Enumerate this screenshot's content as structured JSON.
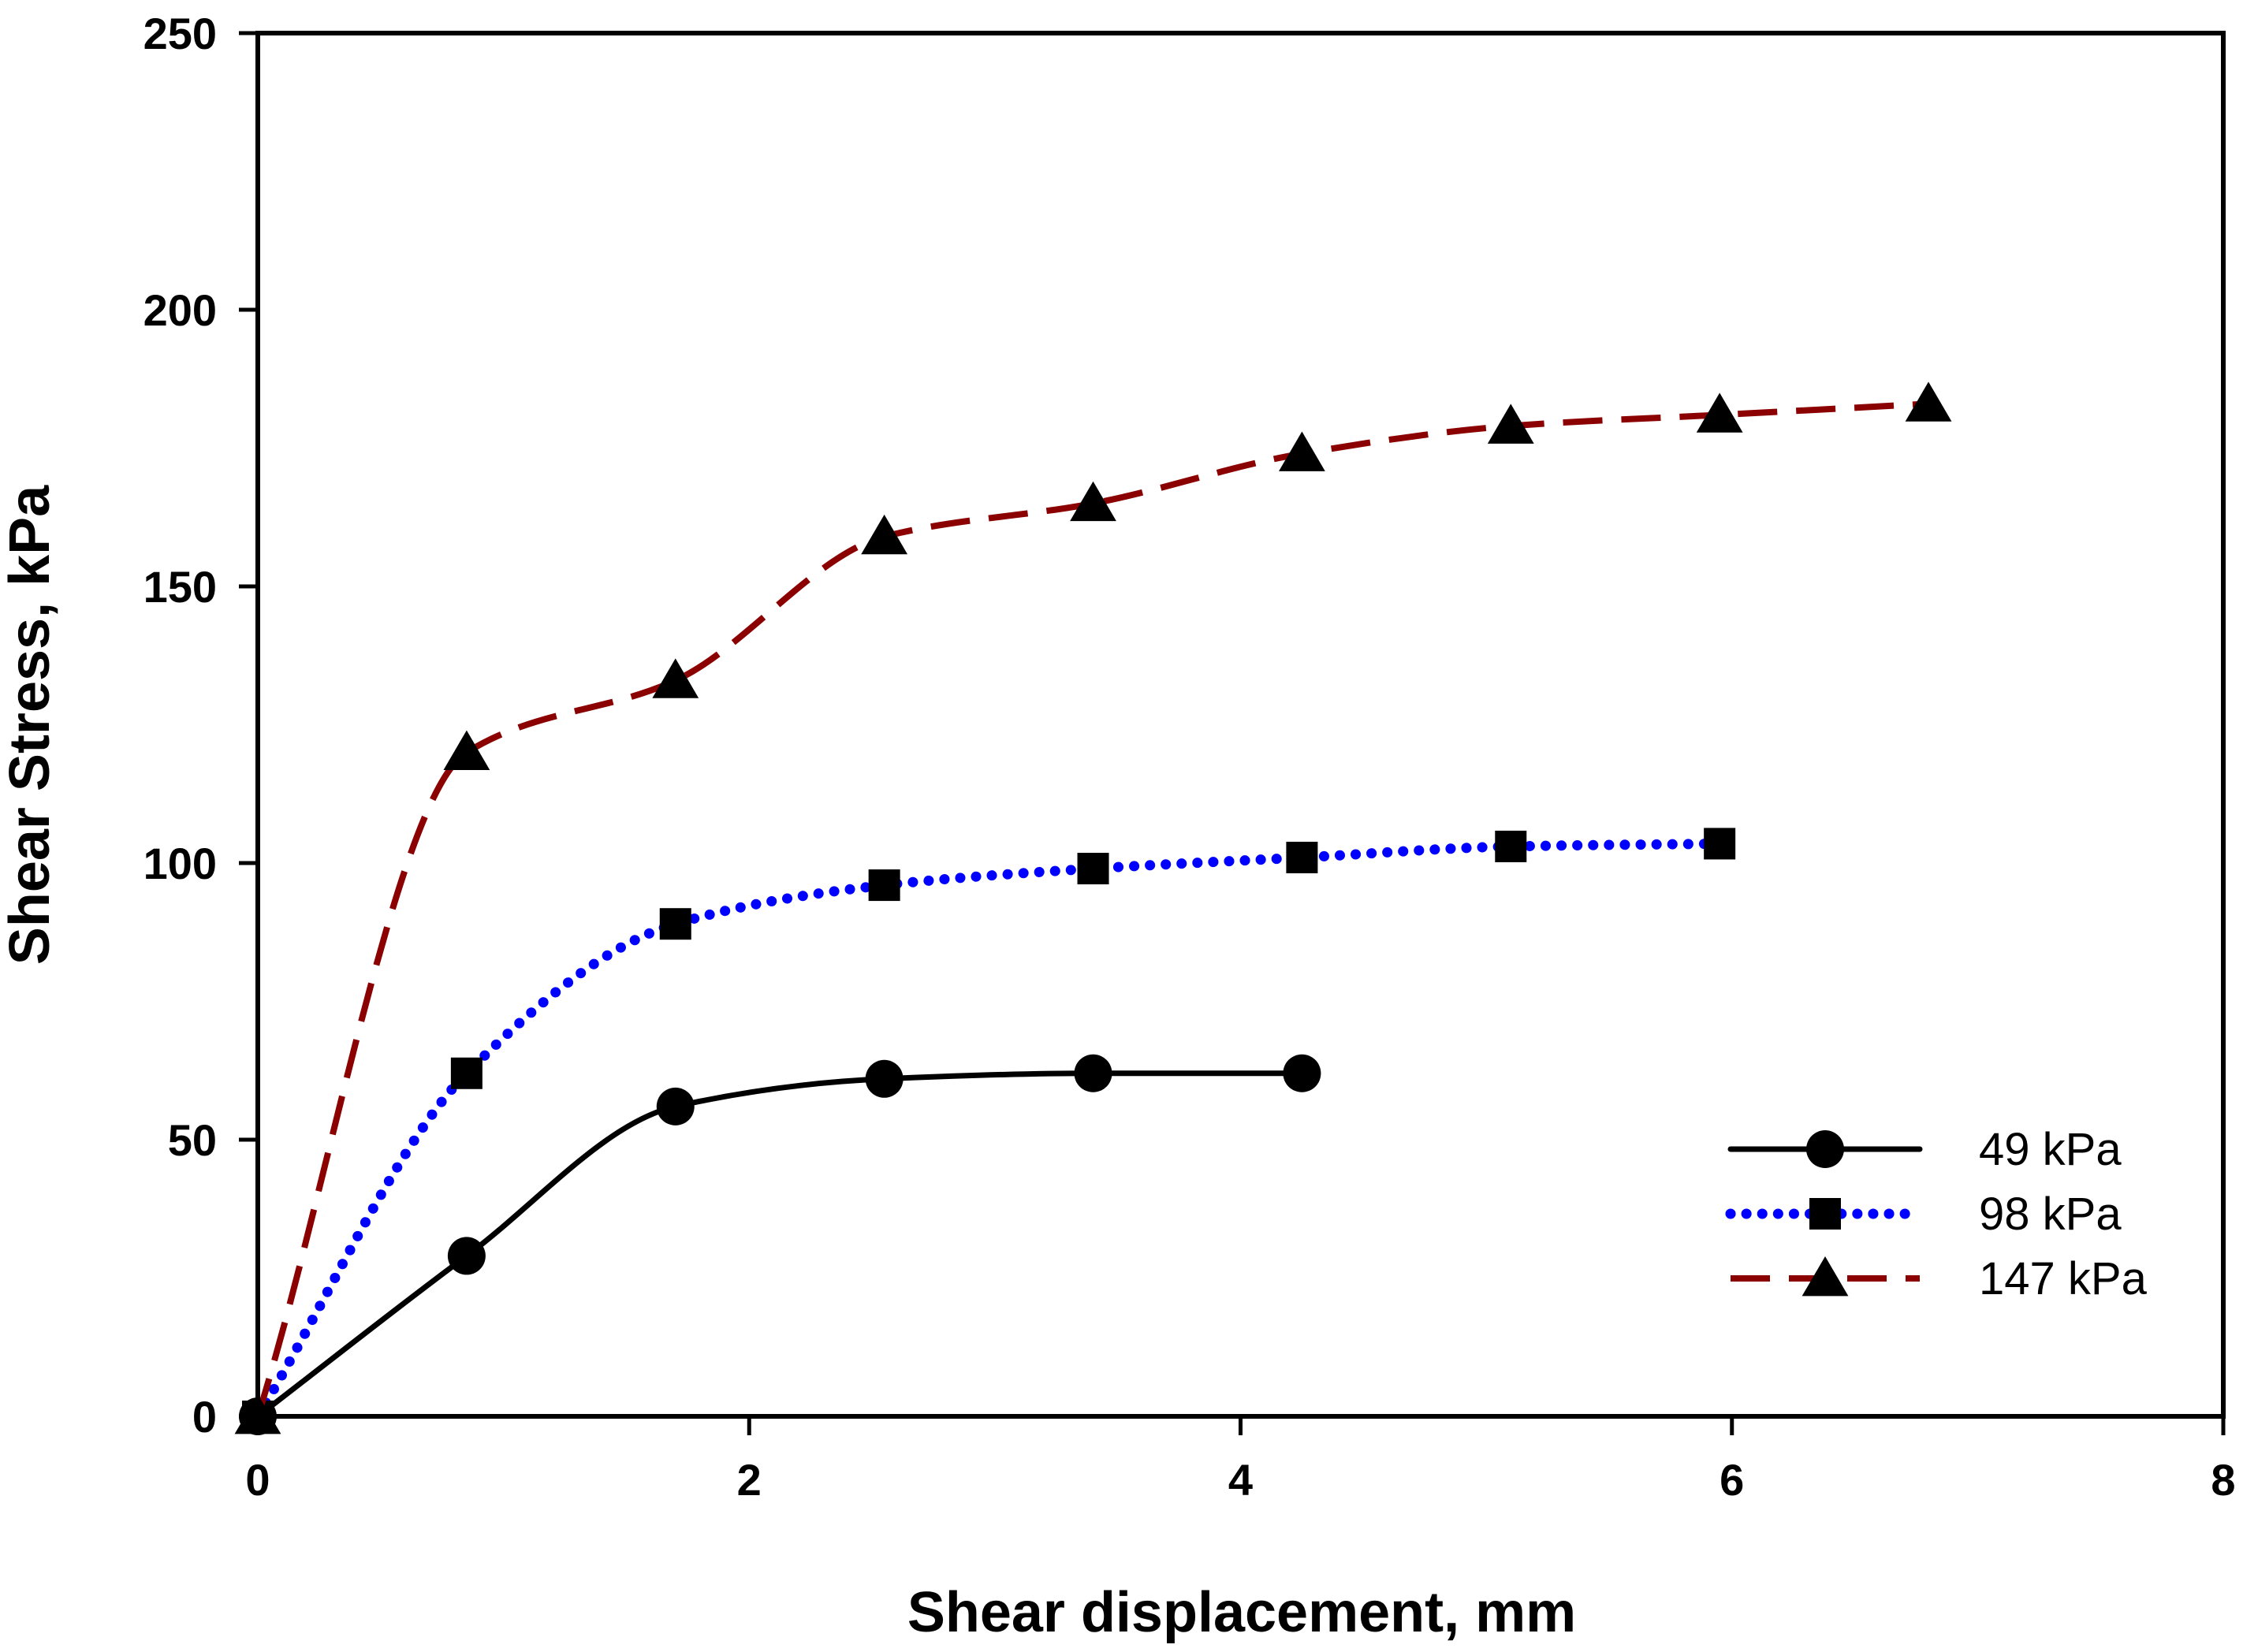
{
  "chart_data": {
    "type": "line",
    "title": "",
    "xlabel": "Shear displacement, mm",
    "ylabel": "Shear Stress, kPa",
    "xlim": [
      0,
      8
    ],
    "ylim": [
      0,
      250
    ],
    "xticks": [
      0,
      2,
      4,
      6,
      8
    ],
    "yticks": [
      0,
      50,
      100,
      150,
      200,
      250
    ],
    "grid": false,
    "legend_position": "bottom-right",
    "series": [
      {
        "name": "49 kPa",
        "marker": "circle",
        "line_style": "solid",
        "color": "#000000",
        "x": [
          0,
          0.85,
          1.7,
          2.55,
          3.4,
          4.25
        ],
        "y": [
          0,
          29,
          56,
          61,
          62,
          62
        ]
      },
      {
        "name": "98 kPa",
        "marker": "square",
        "line_style": "dotted",
        "color": "#0000ff",
        "x": [
          0,
          0.85,
          1.7,
          2.55,
          3.4,
          4.25,
          5.1,
          5.95
        ],
        "y": [
          0,
          62,
          89,
          96,
          99,
          101,
          103,
          103.5
        ]
      },
      {
        "name": "147 kPa",
        "marker": "triangle",
        "line_style": "dashed",
        "color": "#8b0000",
        "x": [
          0,
          0.85,
          1.7,
          2.55,
          3.4,
          4.25,
          5.1,
          5.95,
          6.8
        ],
        "y": [
          0,
          120,
          133,
          159,
          165,
          174,
          179,
          181,
          183
        ]
      }
    ]
  }
}
